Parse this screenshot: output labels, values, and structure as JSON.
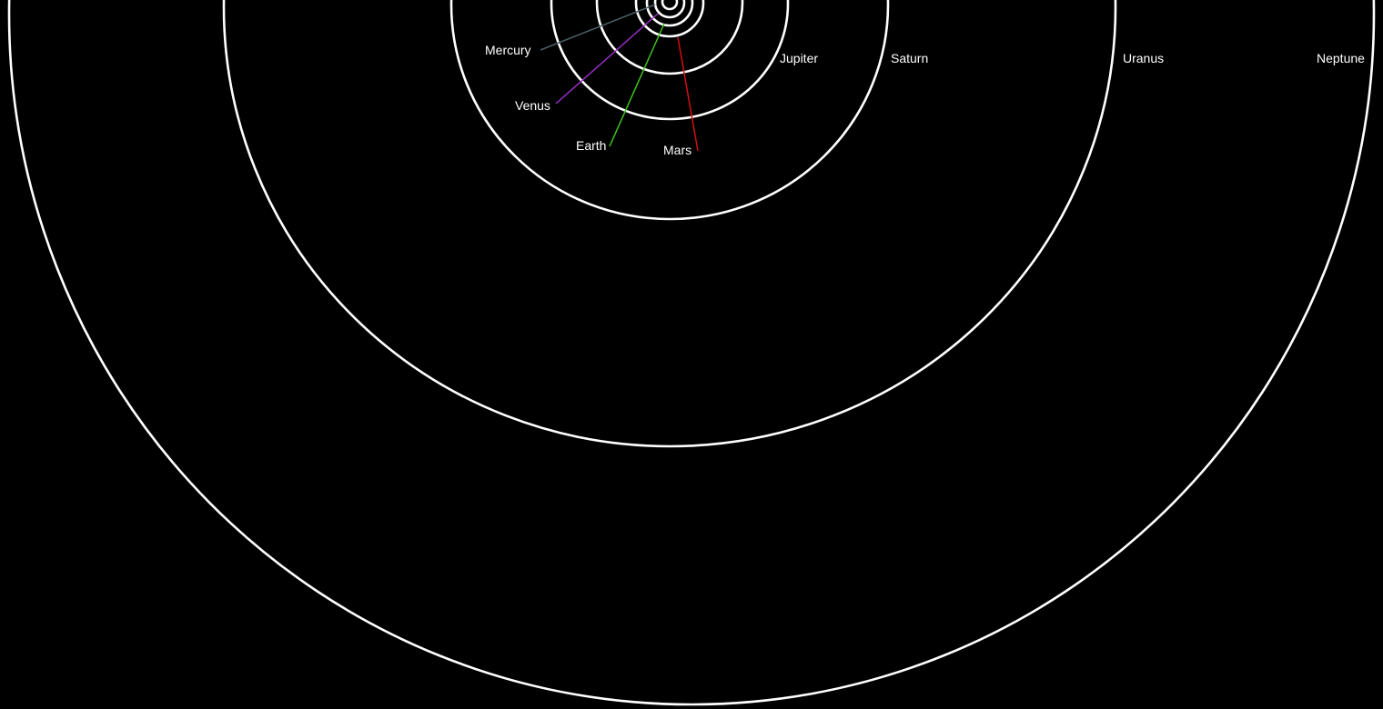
{
  "background": "#000000",
  "orbit_color": "#ffffff",
  "planets": [
    {
      "key": "mercury",
      "name": "Mercury",
      "leader_color": "#4a5f66"
    },
    {
      "key": "venus",
      "name": "Venus",
      "leader_color": "#9a2fc8"
    },
    {
      "key": "earth",
      "name": "Earth",
      "leader_color": "#3fc41c"
    },
    {
      "key": "mars",
      "name": "Mars",
      "leader_color": "#d40f0f"
    },
    {
      "key": "jupiter",
      "name": "Jupiter"
    },
    {
      "key": "saturn",
      "name": "Saturn"
    },
    {
      "key": "uranus",
      "name": "Uranus"
    },
    {
      "key": "neptune",
      "name": "Neptune"
    }
  ]
}
